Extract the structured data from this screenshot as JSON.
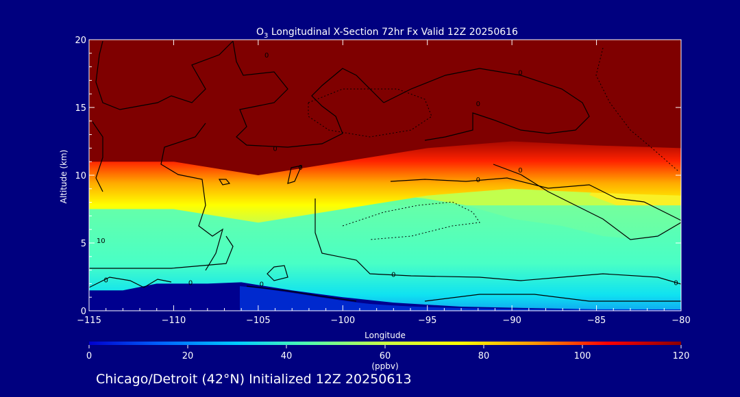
{
  "chart_data": {
    "type": "heatmap",
    "title": {
      "species": "O",
      "subscript": "3",
      "rest": " Longitudinal X-Section 72hr  Fx Valid 12Z 20250616"
    },
    "xlabel": "Longitude",
    "ylabel": "Altitude (km)",
    "xlim": [
      -115,
      -80
    ],
    "ylim": [
      0,
      20
    ],
    "xticks": [
      -115,
      -110,
      -105,
      -100,
      -95,
      -90,
      -85,
      -80
    ],
    "xtick_labels": [
      "−115",
      "−110",
      "−105",
      "−100",
      "−95",
      "−90",
      "−85",
      "−80"
    ],
    "yticks": [
      0,
      5,
      10,
      15,
      20
    ],
    "ytick_labels": [
      "0",
      "5",
      "10",
      "15",
      "20"
    ],
    "tropopause_km": [
      {
        "lon": -115,
        "alt": 11.0
      },
      {
        "lon": -110,
        "alt": 11.0
      },
      {
        "lon": -105,
        "alt": 10.0
      },
      {
        "lon": -100,
        "alt": 11.0
      },
      {
        "lon": -95,
        "alt": 12.0
      },
      {
        "lon": -90,
        "alt": 12.5
      },
      {
        "lon": -85,
        "alt": 12.2
      },
      {
        "lon": -80,
        "alt": 12.0
      }
    ],
    "surface_km": [
      {
        "lon": -115,
        "alt": 1.5
      },
      {
        "lon": -113,
        "alt": 1.5
      },
      {
        "lon": -111,
        "alt": 2.0
      },
      {
        "lon": -108,
        "alt": 2.0
      },
      {
        "lon": -106,
        "alt": 2.1
      },
      {
        "lon": -103,
        "alt": 1.5
      },
      {
        "lon": -100,
        "alt": 1.0
      },
      {
        "lon": -97,
        "alt": 0.6
      },
      {
        "lon": -93,
        "alt": 0.3
      },
      {
        "lon": -89,
        "alt": 0.2
      },
      {
        "lon": -85,
        "alt": 0.1
      },
      {
        "lon": -80,
        "alt": 0.1
      }
    ],
    "contour_labels": [
      {
        "text": "0",
        "lon": -104.5,
        "alt": 18.9
      },
      {
        "text": "0",
        "lon": -89.5,
        "alt": 17.6
      },
      {
        "text": "0",
        "lon": -92.0,
        "alt": 15.3
      },
      {
        "text": "0",
        "lon": -104.0,
        "alt": 12.0
      },
      {
        "text": "0",
        "lon": -102.5,
        "alt": 10.6
      },
      {
        "text": "0",
        "lon": -92.0,
        "alt": 9.7
      },
      {
        "text": "0",
        "lon": -89.5,
        "alt": 10.4
      },
      {
        "text": "10",
        "lon": -114.3,
        "alt": 5.2
      },
      {
        "text": "0",
        "lon": -114.0,
        "alt": 2.3
      },
      {
        "text": "0",
        "lon": -109.0,
        "alt": 2.1
      },
      {
        "text": "0",
        "lon": -104.8,
        "alt": 2.0
      },
      {
        "text": "0",
        "lon": -97.0,
        "alt": 2.7
      },
      {
        "text": "0",
        "lon": -80.3,
        "alt": 2.1
      }
    ],
    "colorbar": {
      "label": "(ppbv)",
      "range": [
        0,
        120
      ],
      "ticks": [
        0,
        20,
        40,
        60,
        80,
        100,
        120
      ],
      "colors": [
        "#0000cc",
        "#0066ff",
        "#00ccff",
        "#55ffaa",
        "#ccff44",
        "#ffff00",
        "#ff9900",
        "#ff0000",
        "#8b0000"
      ]
    },
    "annotation": "Chicago/Detroit (42°N) Initialized 12Z 20250613"
  }
}
